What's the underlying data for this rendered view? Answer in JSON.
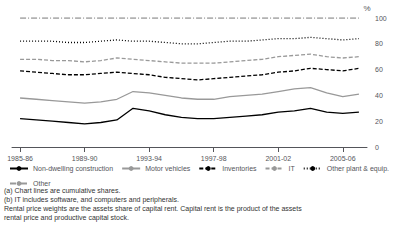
{
  "chart_data": {
    "type": "line",
    "ylabel": "%",
    "x": [
      1985.5,
      1986.5,
      1987.5,
      1988.5,
      1989.5,
      1990.5,
      1991.5,
      1992.5,
      1993.5,
      1994.5,
      1995.5,
      1996.5,
      1997.5,
      1998.5,
      1999.5,
      2000.5,
      2001.5,
      2002.5,
      2003.5,
      2004.5,
      2005.5,
      2006.5
    ],
    "series": [
      {
        "name": "Non-dwelling construction",
        "color": "#000000",
        "line_style": "solid",
        "values": [
          22,
          21,
          20,
          19,
          18,
          19,
          21,
          30,
          28,
          25,
          23,
          22,
          22,
          23,
          24,
          25,
          27,
          28,
          30,
          27,
          26,
          27
        ]
      },
      {
        "name": "Motor vehicles",
        "color": "#999999",
        "line_style": "solid",
        "values": [
          38,
          37,
          36,
          35,
          34,
          35,
          37,
          43,
          42,
          40,
          38,
          37,
          37,
          39,
          40,
          41,
          43,
          45,
          46,
          42,
          39,
          41
        ]
      },
      {
        "name": "Inventories",
        "color": "#000000",
        "line_style": "dashed",
        "values": [
          59,
          58,
          57,
          56,
          56,
          57,
          58,
          57,
          56,
          54,
          53,
          52,
          53,
          54,
          55,
          56,
          58,
          59,
          61,
          60,
          59,
          61
        ]
      },
      {
        "name": "IT",
        "color": "#999999",
        "line_style": "dashed",
        "values": [
          68,
          68,
          67,
          67,
          66,
          67,
          69,
          68,
          67,
          66,
          65,
          65,
          65,
          66,
          67,
          68,
          70,
          71,
          72,
          70,
          69,
          70
        ]
      },
      {
        "name": "Other plant & equip.",
        "color": "#000000",
        "line_style": "dotted",
        "values": [
          82,
          82,
          82,
          81,
          81,
          82,
          83,
          82,
          82,
          81,
          80,
          80,
          81,
          82,
          82,
          83,
          84,
          84,
          85,
          84,
          83,
          84
        ]
      },
      {
        "name": "Other",
        "color": "#999999",
        "line_style": "dashdot",
        "values": [
          100,
          100,
          100,
          100,
          100,
          100,
          100,
          100,
          100,
          100,
          100,
          100,
          100,
          100,
          100,
          100,
          100,
          100,
          100,
          100,
          100,
          100
        ]
      }
    ],
    "xlim": [
      1985.0,
      2007.0
    ],
    "ylim": [
      0,
      100
    ],
    "xticks": [
      {
        "value": 1985.5,
        "label": "1985-86"
      },
      {
        "value": 1989.5,
        "label": "1989-90"
      },
      {
        "value": 1993.5,
        "label": "1993-94"
      },
      {
        "value": 1997.5,
        "label": "1997-98"
      },
      {
        "value": 2001.5,
        "label": "2001-02"
      },
      {
        "value": 2005.5,
        "label": "2005-06"
      }
    ],
    "yticks": [
      0,
      20,
      40,
      60,
      80,
      100
    ],
    "grid": false,
    "legend": "lower left",
    "annotations": [
      "(a) Chart lines are cumulative shares.",
      "(b) IT includes software, and computers and peripherals.",
      "Rental price weights are the assets share of capital rent. Capital rent is the product of the assets",
      "rental price and productive capital stock."
    ]
  }
}
